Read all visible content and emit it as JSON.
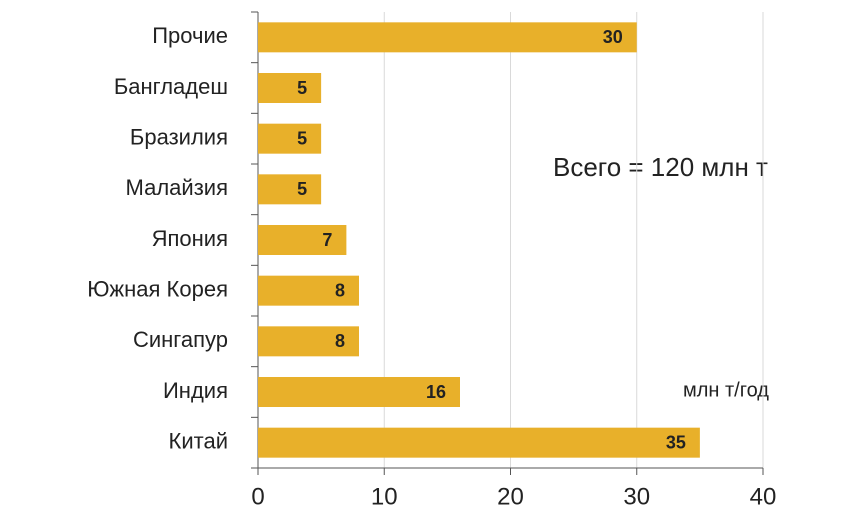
{
  "chart_data": {
    "type": "bar",
    "orientation": "horizontal",
    "categories": [
      "Прочие",
      "Бангладеш",
      "Бразилия",
      "Малайзия",
      "Япония",
      "Южная Корея",
      "Сингапур",
      "Индия",
      "Китай"
    ],
    "values": [
      30,
      5,
      5,
      5,
      7,
      8,
      8,
      16,
      35
    ],
    "color": "#e8b02a",
    "xlim": [
      0,
      40
    ],
    "xticks": [
      0,
      10,
      20,
      30,
      40
    ],
    "grid": true,
    "annotations": [
      "Всего = 120 млн т",
      "млн т/год"
    ]
  }
}
